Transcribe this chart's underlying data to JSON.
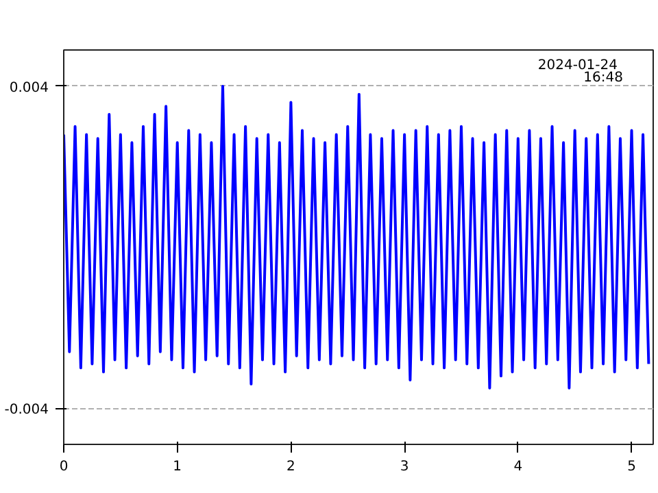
{
  "chart_data": {
    "type": "line",
    "annotations": [
      "2024-01-24\n16:48"
    ],
    "x": [
      0.0,
      0.05,
      0.1,
      0.15,
      0.2,
      0.25,
      0.3,
      0.35,
      0.4,
      0.45,
      0.5,
      0.55,
      0.6,
      0.65,
      0.7,
      0.75,
      0.8,
      0.85,
      0.9,
      0.95,
      1.0,
      1.05,
      1.1,
      1.15,
      1.2,
      1.25,
      1.3,
      1.35,
      1.4,
      1.45,
      1.5,
      1.55,
      1.6,
      1.65,
      1.7,
      1.75,
      1.8,
      1.85,
      1.9,
      1.95,
      2.0,
      2.05,
      2.1,
      2.15,
      2.2,
      2.25,
      2.3,
      2.35,
      2.4,
      2.45,
      2.5,
      2.55,
      2.6,
      2.65,
      2.7,
      2.75,
      2.8,
      2.85,
      2.9,
      2.95,
      3.0,
      3.05,
      3.1,
      3.15,
      3.2,
      3.25,
      3.3,
      3.35,
      3.4,
      3.45,
      3.5,
      3.55,
      3.6,
      3.65,
      3.7,
      3.75,
      3.8,
      3.85,
      3.9,
      3.95,
      4.0,
      4.05,
      4.1,
      4.15,
      4.2,
      4.25,
      4.3,
      4.35,
      4.4,
      4.45,
      4.5,
      4.55,
      4.6,
      4.65,
      4.7,
      4.75,
      4.8,
      4.85,
      4.9,
      4.95,
      5.0,
      5.05,
      5.1,
      5.15
    ],
    "series": [
      {
        "color": "#0000ff",
        "values": [
          0.0028,
          -0.0026,
          0.003,
          -0.003,
          0.0028,
          -0.0029,
          0.0027,
          -0.0031,
          0.0033,
          -0.0028,
          0.0028,
          -0.003,
          0.0026,
          -0.0027,
          0.003,
          -0.0029,
          0.0033,
          -0.0026,
          0.0035,
          -0.0028,
          0.0026,
          -0.003,
          0.0029,
          -0.0031,
          0.0028,
          -0.0028,
          0.0026,
          -0.0027,
          0.004,
          -0.0029,
          0.0028,
          -0.003,
          0.003,
          -0.0034,
          0.0027,
          -0.0028,
          0.0028,
          -0.0029,
          0.0026,
          -0.0031,
          0.0036,
          -0.0027,
          0.0029,
          -0.003,
          0.0027,
          -0.0028,
          0.0026,
          -0.0029,
          0.0028,
          -0.0027,
          0.003,
          -0.0028,
          0.0038,
          -0.003,
          0.0028,
          -0.0029,
          0.0027,
          -0.0028,
          0.0029,
          -0.003,
          0.0028,
          -0.0033,
          0.0029,
          -0.0028,
          0.003,
          -0.0029,
          0.0028,
          -0.003,
          0.0029,
          -0.0028,
          0.003,
          -0.0029,
          0.0027,
          -0.003,
          0.0026,
          -0.0035,
          0.0028,
          -0.0032,
          0.0029,
          -0.0031,
          0.0027,
          -0.0028,
          0.0029,
          -0.003,
          0.0027,
          -0.0029,
          0.003,
          -0.0028,
          0.0026,
          -0.0035,
          0.0029,
          -0.0031,
          0.0027,
          -0.003,
          0.0028,
          -0.0029,
          0.003,
          -0.0031,
          0.0027,
          -0.0028,
          0.0029,
          -0.003,
          0.0028,
          -0.0029
        ]
      }
    ],
    "xlim": [
      0,
      5.19
    ],
    "ylim": [
      -0.0049,
      0.0049
    ],
    "xticks": [
      0,
      1,
      2,
      3,
      4,
      5
    ],
    "yticks": [
      -0.004,
      0.004
    ],
    "grid": "y",
    "line_style": "solid"
  }
}
